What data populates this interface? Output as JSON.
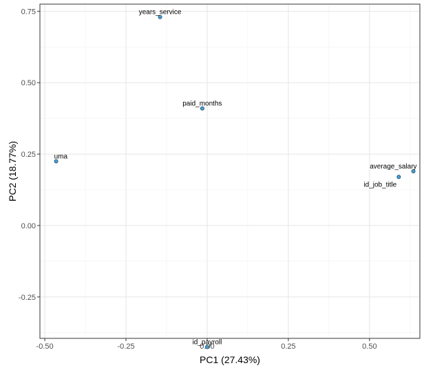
{
  "chart_data": {
    "type": "scatter",
    "title": "",
    "xlabel": "PC1 (27.43%)",
    "ylabel": "PC2 (18.77%)",
    "xlim": [
      -0.515,
      0.655
    ],
    "ylim": [
      -0.395,
      0.775
    ],
    "x_ticks": [
      {
        "value": -0.5,
        "label": "-0.50"
      },
      {
        "value": -0.25,
        "label": "-0.25"
      },
      {
        "value": 0.0,
        "label": "0.00"
      },
      {
        "value": 0.25,
        "label": "0.25"
      },
      {
        "value": 0.5,
        "label": "0.50"
      }
    ],
    "y_ticks": [
      {
        "value": -0.25,
        "label": "-0.25"
      },
      {
        "value": 0.0,
        "label": "0.00"
      },
      {
        "value": 0.25,
        "label": "0.25"
      },
      {
        "value": 0.5,
        "label": "0.50"
      },
      {
        "value": 0.75,
        "label": "0.75"
      }
    ],
    "grid": true,
    "legend": "none",
    "point_color": "#4a9fd1",
    "point_stroke": "#1f4e6b",
    "points": [
      {
        "label": "years_service",
        "x": -0.145,
        "y": 0.73,
        "label_pos": "above"
      },
      {
        "label": "paid_months",
        "x": -0.015,
        "y": 0.41,
        "label_pos": "above"
      },
      {
        "label": "uma",
        "x": -0.465,
        "y": 0.225,
        "label_pos": "above-right"
      },
      {
        "label": "average_salary",
        "x": 0.635,
        "y": 0.19,
        "label_pos": "above-left"
      },
      {
        "label": "id_job_title",
        "x": 0.59,
        "y": 0.17,
        "label_pos": "below-left"
      },
      {
        "label": "id_payroll",
        "x": 0.0,
        "y": -0.425,
        "label_pos": "above"
      }
    ]
  }
}
